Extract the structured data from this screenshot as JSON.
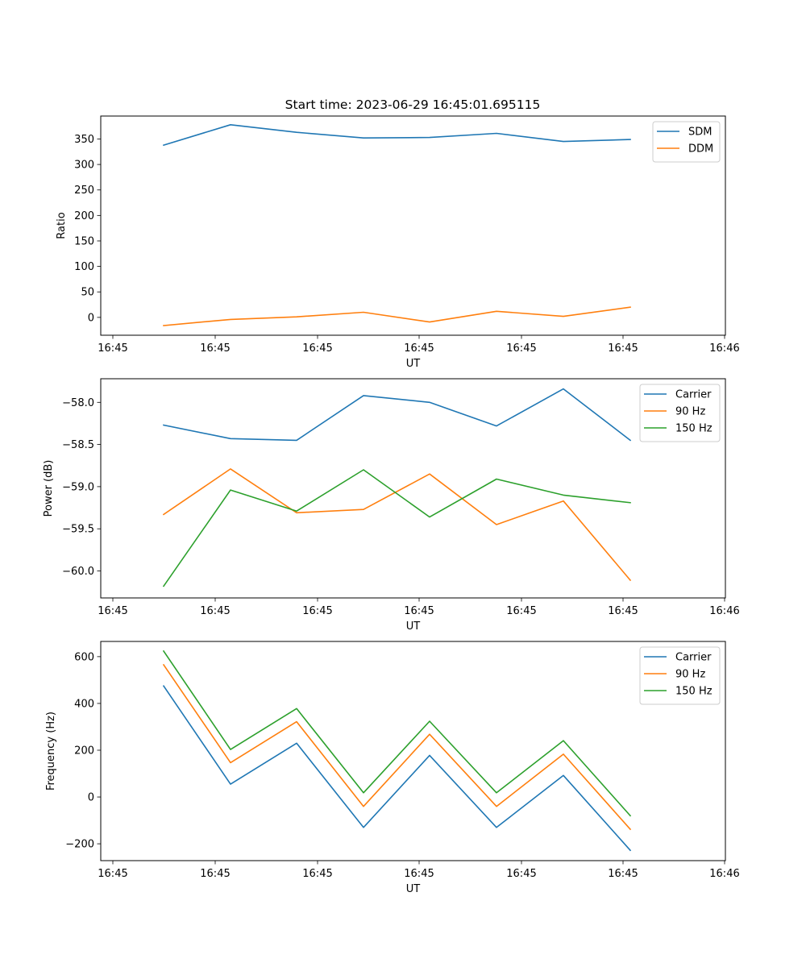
{
  "chart_data": [
    {
      "type": "line",
      "title": "Start time: 2023-06-29 16:45:01.695115",
      "xlabel": "UT",
      "ylabel": "Ratio",
      "x_ticks": [
        "16:45",
        "16:45",
        "16:45",
        "16:45",
        "16:45",
        "16:45",
        "16:46"
      ],
      "y_ticks": [
        0,
        50,
        100,
        150,
        200,
        250,
        300,
        350
      ],
      "ylim": [
        -35,
        395
      ],
      "legend": "top-right",
      "grid": false,
      "series": [
        {
          "name": "SDM",
          "color": "#1f77b4",
          "values": [
            338,
            378,
            363,
            352,
            353,
            361,
            345,
            349
          ]
        },
        {
          "name": "DDM",
          "color": "#ff7f0e",
          "values": [
            -16,
            -4,
            1,
            10,
            -9,
            12,
            2,
            20
          ]
        }
      ]
    },
    {
      "type": "line",
      "title": "",
      "xlabel": "UT",
      "ylabel": "Power (dB)",
      "x_ticks": [
        "16:45",
        "16:45",
        "16:45",
        "16:45",
        "16:45",
        "16:45",
        "16:46"
      ],
      "y_ticks": [
        -58.0,
        -58.5,
        -59.0,
        -59.5,
        -60.0
      ],
      "y_tick_labels": [
        "−58.0",
        "−58.5",
        "−59.0",
        "−59.5",
        "−60.0"
      ],
      "ylim": [
        -60.32,
        -57.72
      ],
      "legend": "top-right",
      "grid": false,
      "series": [
        {
          "name": "Carrier",
          "color": "#1f77b4",
          "values": [
            -58.27,
            -58.43,
            -58.45,
            -57.92,
            -58.0,
            -58.28,
            -57.84,
            -58.45
          ]
        },
        {
          "name": "90 Hz",
          "color": "#ff7f0e",
          "values": [
            -59.33,
            -58.79,
            -59.31,
            -59.27,
            -58.85,
            -59.45,
            -59.17,
            -60.11
          ]
        },
        {
          "name": "150 Hz",
          "color": "#2ca02c",
          "values": [
            -60.18,
            -59.04,
            -59.29,
            -58.8,
            -59.36,
            -58.91,
            -59.1,
            -59.19
          ]
        }
      ]
    },
    {
      "type": "line",
      "title": "",
      "xlabel": "UT",
      "ylabel": "Frequency (Hz)",
      "x_ticks": [
        "16:45",
        "16:45",
        "16:45",
        "16:45",
        "16:45",
        "16:45",
        "16:46"
      ],
      "y_ticks": [
        -200,
        0,
        200,
        400,
        600
      ],
      "y_tick_labels": [
        "−200",
        "0",
        "200",
        "400",
        "600"
      ],
      "ylim": [
        -272,
        665
      ],
      "legend": "top-right",
      "grid": false,
      "series": [
        {
          "name": "Carrier",
          "color": "#1f77b4",
          "values": [
            475,
            55,
            230,
            -130,
            178,
            -130,
            92,
            -228
          ]
        },
        {
          "name": "90 Hz",
          "color": "#ff7f0e",
          "values": [
            565,
            147,
            322,
            -40,
            268,
            -40,
            183,
            -138
          ]
        },
        {
          "name": "150 Hz",
          "color": "#2ca02c",
          "values": [
            624,
            203,
            378,
            18,
            324,
            18,
            241,
            -80
          ]
        }
      ]
    }
  ]
}
